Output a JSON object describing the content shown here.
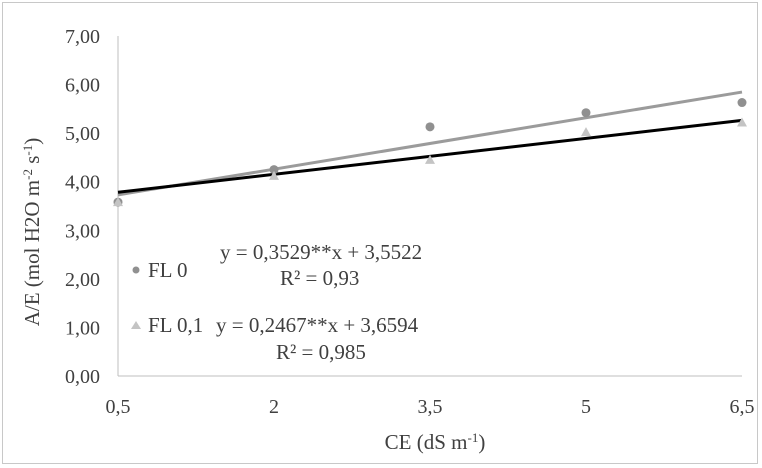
{
  "chart_data": {
    "type": "scatter",
    "xlabel": "CE (dS m",
    "xlabel_sup": "-1",
    "xlabel_end": ")",
    "ylabel": "A/E  (mol H2O m",
    "ylabel_sup1": "-2",
    "ylabel_mid": " s",
    "ylabel_sup2": "-1",
    "ylabel_end": ")",
    "x_ticks": [
      "0,5",
      "2",
      "3,5",
      "5",
      "6,5"
    ],
    "x_tick_values": [
      0.5,
      2,
      3.5,
      5,
      6.5
    ],
    "y_ticks": [
      "0,00",
      "1,00",
      "2,00",
      "3,00",
      "4,00",
      "5,00",
      "6,00",
      "7,00"
    ],
    "xlim": [
      0.5,
      6.5
    ],
    "ylim": [
      0,
      7
    ],
    "grid": false,
    "legend_position": "left, inside plot area",
    "series": [
      {
        "name": "FL 0",
        "marker": "circle",
        "color": "#909090",
        "line_color": "#9b9b9b",
        "x": [
          0.5,
          2,
          3.5,
          5,
          6.5
        ],
        "y": [
          3.58,
          4.25,
          5.13,
          5.42,
          5.63
        ],
        "fit": {
          "slope": 0.3529,
          "intercept": 3.5522
        },
        "equation": "y = 0,3529**x + 3,5522",
        "r2": "R² = 0,93"
      },
      {
        "name": "FL 0,1",
        "marker": "triangle",
        "color": "#c4c4c4",
        "line_color": "#000000",
        "x": [
          0.5,
          2,
          3.5,
          5,
          6.5
        ],
        "y": [
          3.58,
          4.12,
          4.45,
          5.02,
          5.22
        ],
        "fit": {
          "slope": 0.2467,
          "intercept": 3.6594
        },
        "equation": "y = 0,2467**x + 3,6594",
        "r2": "R² = 0,985"
      }
    ]
  }
}
